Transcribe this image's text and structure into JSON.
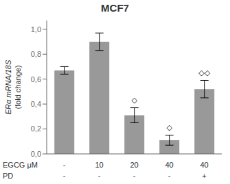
{
  "chart_data": {
    "type": "bar",
    "title": "MCF7",
    "ylabel": [
      "ERα mRNA/18S",
      "(fold change)"
    ],
    "category_rows": [
      {
        "label": "EGCG μM",
        "categories": [
          "-",
          "10",
          "20",
          "40",
          "40"
        ]
      },
      {
        "label": "PD",
        "categories": [
          "-",
          "-",
          "-",
          "-",
          "+"
        ]
      }
    ],
    "values": [
      0.67,
      0.9,
      0.31,
      0.11,
      0.52
    ],
    "errors": [
      0.03,
      0.07,
      0.06,
      0.04,
      0.07
    ],
    "color": "#999999",
    "ylim": [
      0.0,
      1.07
    ],
    "yticks": [
      {
        "value": 0.0,
        "label": "0,0"
      },
      {
        "value": 0.2,
        "label": "0,2"
      },
      {
        "value": 0.4,
        "label": "0,4"
      },
      {
        "value": 0.6,
        "label": "0,6"
      },
      {
        "value": 0.8,
        "label": "0,8"
      },
      {
        "value": 1.0,
        "label": "1,0"
      }
    ],
    "annotations": [
      {
        "index": 2,
        "text": "◇"
      },
      {
        "index": 3,
        "text": "◇"
      },
      {
        "index": 4,
        "text": "◇◇"
      }
    ]
  }
}
